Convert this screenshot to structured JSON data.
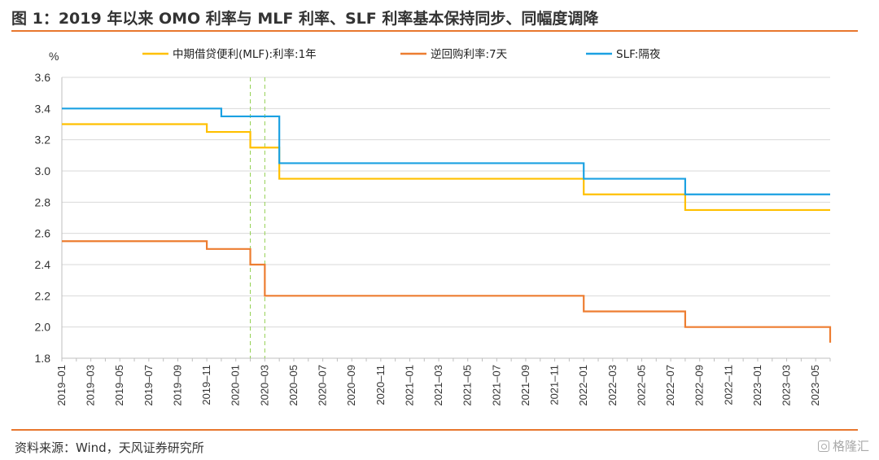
{
  "header": {
    "title": "图 1：2019 年以来 OMO 利率与 MLF 利率、SLF 利率基本保持同步、同幅度调降"
  },
  "footer": {
    "source": "资料来源：Wind，天风证券研究所",
    "watermark": "格隆汇"
  },
  "colors": {
    "accent_rule": "#e8772e",
    "mlf": "#ffc000",
    "omo": "#ed7d31",
    "slf": "#1ba1e2",
    "marker": "#92d050"
  },
  "chart_data": {
    "type": "line",
    "step": true,
    "ylabel": "%",
    "ylim": [
      1.8,
      3.6
    ],
    "yticks": [
      1.8,
      2.0,
      2.2,
      2.4,
      2.6,
      2.8,
      3.0,
      3.2,
      3.4,
      3.6
    ],
    "yticklabels": [
      "1.8",
      "2.0",
      "2.2",
      "2.4",
      "2.6",
      "2.8",
      "3.0",
      "3.2",
      "3.4",
      "3.6"
    ],
    "xlim": [
      "2019-01",
      "2023-06"
    ],
    "xticklabels": [
      "2019–01",
      "2019–03",
      "2019–05",
      "2019–07",
      "2019–09",
      "2019–11",
      "2020–01",
      "2020–03",
      "2020–05",
      "2020–07",
      "2020–09",
      "2020–11",
      "2021–01",
      "2021–03",
      "2021–05",
      "2021–07",
      "2021–09",
      "2021–11",
      "2022–01",
      "2022–03",
      "2022–05",
      "2022–07",
      "2022–09",
      "2022–11",
      "2023–01",
      "2023–03",
      "2023–05"
    ],
    "grid": "horizontal",
    "legend_position": "top",
    "reference_lines": [
      "2020-02",
      "2020-03"
    ],
    "series": [
      {
        "name": "中期借贷便利(MLF):利率:1年",
        "color": "#ffc000",
        "points": [
          [
            "2019-01",
            3.3
          ],
          [
            "2019-11",
            3.25
          ],
          [
            "2020-02",
            3.15
          ],
          [
            "2020-04",
            2.95
          ],
          [
            "2022-01",
            2.85
          ],
          [
            "2022-08",
            2.75
          ],
          [
            "2023-06",
            2.75
          ]
        ]
      },
      {
        "name": "逆回购利率:7天",
        "color": "#ed7d31",
        "points": [
          [
            "2019-01",
            2.55
          ],
          [
            "2019-11",
            2.5
          ],
          [
            "2020-02",
            2.4
          ],
          [
            "2020-03",
            2.2
          ],
          [
            "2022-01",
            2.1
          ],
          [
            "2022-08",
            2.0
          ],
          [
            "2023-06",
            1.9
          ]
        ]
      },
      {
        "name": "SLF:隔夜",
        "color": "#1ba1e2",
        "points": [
          [
            "2019-01",
            3.4
          ],
          [
            "2019-12",
            3.35
          ],
          [
            "2020-04",
            3.05
          ],
          [
            "2022-01",
            2.95
          ],
          [
            "2022-08",
            2.85
          ],
          [
            "2023-06",
            2.85
          ]
        ]
      }
    ]
  }
}
